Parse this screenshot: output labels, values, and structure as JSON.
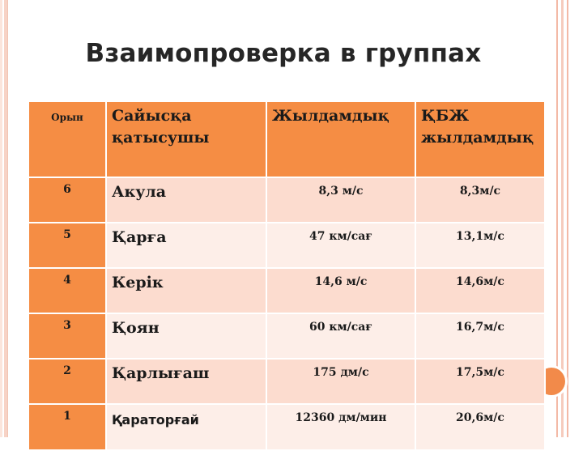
{
  "title": "Взаимопроверка в группах",
  "table": {
    "headers": [
      "Орын",
      "Сайысқа қатысушы",
      "Жылдамдық",
      "ҚБЖ жылдамдық"
    ],
    "rows": [
      [
        "6",
        "Акула",
        "8,3 м/с",
        "8,3м/с"
      ],
      [
        "5",
        "Қарға",
        "47 км/сағ",
        "13,1м/с"
      ],
      [
        "4",
        "Керік",
        "14,6 м/с",
        "14,6м/с"
      ],
      [
        "3",
        "Қоян",
        "60 км/сағ",
        "16,7м/с"
      ],
      [
        "2",
        "Қарлығаш",
        "175 дм/с",
        "17,5м/с"
      ],
      [
        "1",
        "Қараторғай",
        "12360 дм/мин",
        "20,6м/с"
      ]
    ]
  },
  "colors": {
    "accent": "#f58d44",
    "row_light": "#fdeee8",
    "row_dark": "#fcdccf",
    "frame": "#f3b9a6"
  }
}
